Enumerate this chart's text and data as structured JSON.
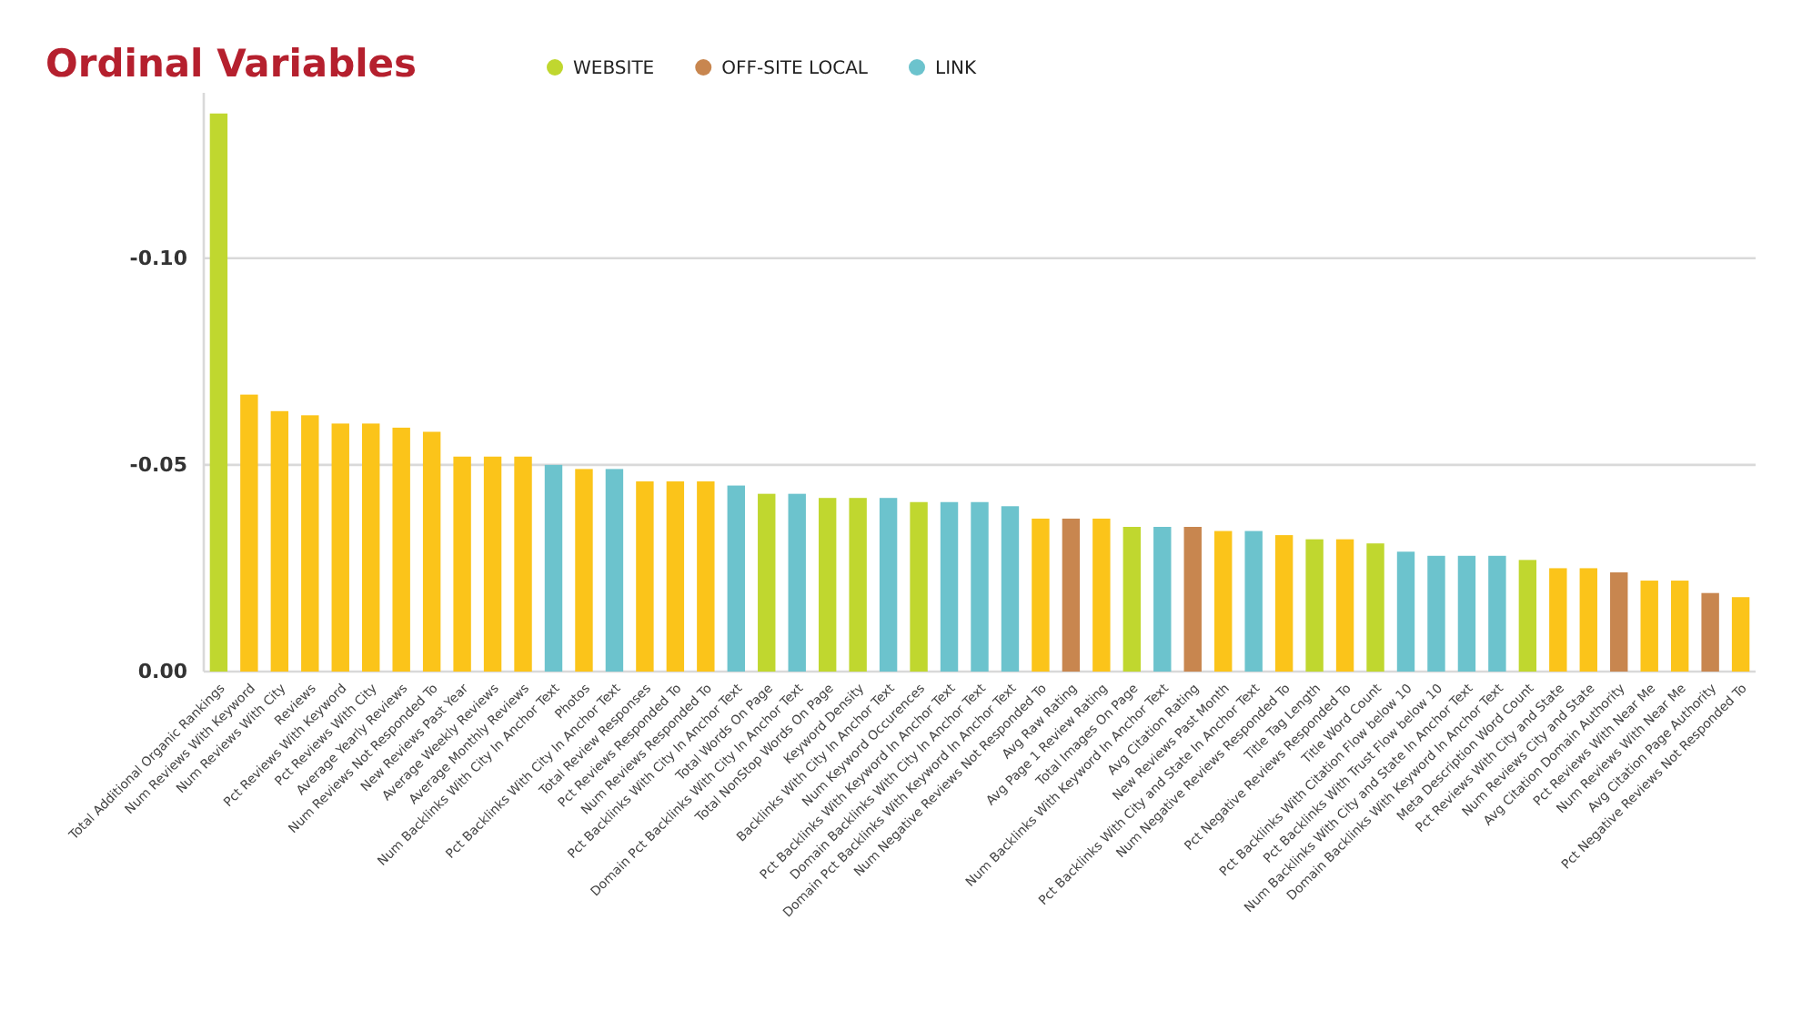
{
  "chart_data": {
    "type": "bar",
    "title": "Ordinal Variables",
    "categories": [
      "Total Additional Organic Rankings",
      "Num Reviews With Keyword",
      "Num Reviews With City",
      "Reviews",
      "Pct Reviews With Keyword",
      "Pct Reviews With City",
      "Average Yearly Reviews",
      "Num Reviews Not Responded To",
      "New Reviews Past Year",
      "Average Weekly Reviews",
      "Average Monthly Reviews",
      "Num Backlinks With City In Anchor Text",
      "Photos",
      "Pct Backlinks With City In Anchor Text",
      "Total Review Responses",
      "Pct Reviews Responded To",
      "Num Reviews Responded To",
      "Pct Backlinks With City In Anchor Text",
      "Total Words On Page",
      "Domain Pct Backlinks With City In Anchor Text",
      "Total NonStop Words On Page",
      "Keyword Density",
      "Backlinks With City In Anchor Text",
      "Num Keyword Occurences",
      "Pct Backlinks With Keyword In Anchor Text",
      "Domain Backlinks With City In Anchor Text",
      "Domain Pct Backlinks With Keyword In Anchor Text",
      "Num Negative Reviews Not Responded To",
      "Avg Raw Rating",
      "Avg Page 1 Review Rating",
      "Total Images On Page",
      "Num Backlinks With Keyword In Anchor Text",
      "Avg Citation Rating",
      "New Reviews Past Month",
      "Pct Backlinks With City and State In Anchor Text",
      "Num Negative Reviews Responded To",
      "Title Tag Length",
      "Pct Negative Reviews Responded To",
      "Title Word Count",
      "Pct Backlinks With Citation Flow below 10",
      "Pct Backlinks With  Trust Flow below 10",
      "Num Backlinks With City and State In Anchor Text",
      "Domain Backlinks With Keyword In Anchor Text",
      "Meta Description Word Count",
      "Pct Reviews With City and State",
      "Num Reviews City and State",
      "Avg Citation Domain Authority",
      "Pct Reviews With Near Me",
      "Num Reviews With Near Me",
      "Avg Citation Page Authority",
      "Pct Negative Reviews Not Responded To"
    ],
    "series": [
      {
        "color": "#fbc41a",
        "values": [
          null,
          -0.067,
          -0.063,
          -0.062,
          -0.06,
          -0.06,
          -0.059,
          -0.058,
          -0.052,
          -0.052,
          -0.052,
          null,
          -0.049,
          null,
          -0.046,
          -0.046,
          -0.046,
          null,
          null,
          null,
          null,
          null,
          null,
          null,
          null,
          null,
          null,
          -0.037,
          null,
          -0.037,
          null,
          null,
          null,
          -0.034,
          null,
          -0.033,
          null,
          -0.032,
          null,
          null,
          null,
          null,
          null,
          null,
          -0.025,
          -0.025,
          null,
          -0.022,
          -0.022,
          null,
          -0.018
        ]
      },
      {
        "name": "WEBSITE",
        "color": "#c0d72f",
        "values": [
          -0.135,
          null,
          null,
          null,
          null,
          null,
          null,
          null,
          null,
          null,
          null,
          null,
          null,
          null,
          null,
          null,
          null,
          null,
          -0.043,
          null,
          -0.042,
          -0.042,
          null,
          -0.041,
          null,
          null,
          null,
          null,
          null,
          null,
          -0.035,
          null,
          null,
          null,
          null,
          null,
          -0.032,
          null,
          -0.031,
          null,
          null,
          null,
          null,
          -0.027,
          null,
          null,
          null,
          null,
          null,
          null,
          null
        ]
      },
      {
        "name": "OFF-SITE LOCAL",
        "color": "#c8864f",
        "values": [
          null,
          null,
          null,
          null,
          null,
          null,
          null,
          null,
          null,
          null,
          null,
          null,
          null,
          null,
          null,
          null,
          null,
          null,
          null,
          null,
          null,
          null,
          null,
          null,
          null,
          null,
          null,
          null,
          -0.037,
          null,
          null,
          null,
          -0.035,
          null,
          null,
          null,
          null,
          null,
          null,
          null,
          null,
          null,
          null,
          null,
          null,
          null,
          -0.024,
          null,
          null,
          -0.019,
          null
        ]
      },
      {
        "name": "LINK",
        "color": "#6cc3cd",
        "values": [
          null,
          null,
          null,
          null,
          null,
          null,
          null,
          null,
          null,
          null,
          null,
          -0.05,
          null,
          -0.049,
          null,
          null,
          null,
          -0.045,
          null,
          -0.043,
          null,
          null,
          -0.042,
          null,
          -0.041,
          -0.041,
          -0.04,
          null,
          null,
          null,
          null,
          -0.035,
          null,
          null,
          -0.034,
          null,
          null,
          null,
          null,
          -0.029,
          -0.028,
          -0.028,
          -0.028,
          null,
          null,
          null,
          null,
          null,
          null,
          null,
          null
        ]
      }
    ],
    "ylim": [
      0,
      -0.14
    ],
    "yticks": [
      {
        "value": 0,
        "label": "0.00"
      },
      {
        "value": -0.05,
        "label": "-0.05"
      },
      {
        "value": -0.1,
        "label": "-0.10"
      }
    ],
    "grid": "y",
    "legend": "top"
  }
}
